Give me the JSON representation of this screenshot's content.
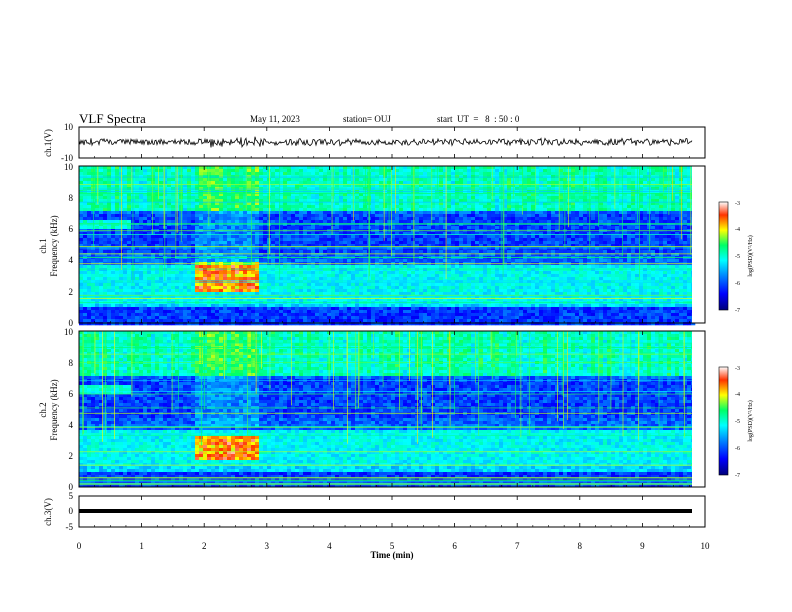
{
  "header": {
    "title": "VLF Spectra",
    "date": "May 11, 2023",
    "station": "station= OUJ",
    "start": "start  UT  =   8  : 50 : 0"
  },
  "colorscale": {
    "label": "log(PSD)(V²/Hz)",
    "ticks": [
      "-3",
      "-4",
      "-5",
      "-6",
      "-7"
    ],
    "stops": [
      "#00007a",
      "#0000ff",
      "#0088ff",
      "#00ffff",
      "#00ff66",
      "#ffff00",
      "#ff3300",
      "#ffffff"
    ]
  },
  "chart_data": [
    {
      "type": "line",
      "panel": "ch1-waveform",
      "ylabel": "ch.1(V)",
      "ylim": [
        -10,
        10
      ],
      "yticks": [
        "10",
        "-10"
      ],
      "baseline": 0,
      "note": "noise waveform centered near 0 V"
    },
    {
      "type": "heatmap",
      "panel": "ch1-spectrogram",
      "ylabel": "ch.1\nFrequency (kHz)",
      "ylabel_line1": "ch.1",
      "ylabel_line2": "Frequency (kHz)",
      "ylim": [
        0,
        10
      ],
      "yticks": [
        "0",
        "2",
        "4",
        "6",
        "8",
        "10"
      ],
      "xlim": [
        0,
        9.8
      ],
      "zlim": [
        -7,
        -3
      ],
      "bands": [
        {
          "name": "upper-band-low",
          "t": [
            0,
            0.8
          ],
          "f": [
            6.0,
            6.5
          ]
        },
        {
          "name": "hot-band",
          "t": [
            1.8,
            2.85
          ],
          "f": [
            2.0,
            3.9
          ]
        }
      ]
    },
    {
      "type": "heatmap",
      "panel": "ch2-spectrogram",
      "ylabel_line1": "ch.2",
      "ylabel_line2": "Frequency (kHz)",
      "ylim": [
        0,
        10
      ],
      "yticks": [
        "0",
        "2",
        "4",
        "6",
        "8",
        "10"
      ],
      "xlim": [
        0,
        9.8
      ],
      "zlim": [
        -7,
        -3
      ],
      "bands": [
        {
          "name": "upper-band-low",
          "t": [
            0,
            0.8
          ],
          "f": [
            5.9,
            6.6
          ]
        },
        {
          "name": "hot-band",
          "t": [
            1.8,
            2.85
          ],
          "f": [
            1.8,
            3.2
          ]
        }
      ]
    },
    {
      "type": "line",
      "panel": "ch3-waveform",
      "ylabel": "ch.3(V)",
      "ylim": [
        -5,
        5
      ],
      "yticks": [
        "5",
        "0",
        "-5"
      ],
      "baseline": -1,
      "xlabel": "Time (min)",
      "xticks": [
        "0",
        "1",
        "2",
        "3",
        "4",
        "5",
        "6",
        "7",
        "8",
        "9",
        "10"
      ],
      "xlim": [
        0,
        10
      ]
    }
  ]
}
